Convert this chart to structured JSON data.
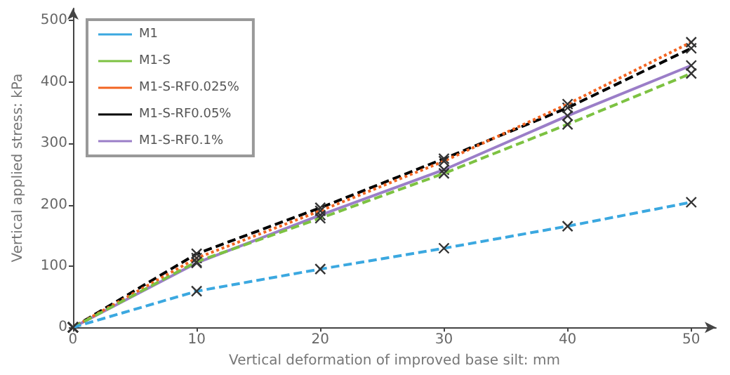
{
  "chart_data": {
    "type": "line",
    "xlabel": "Vertical deformation of improved base silt: mm",
    "ylabel": "Vertical applied stress: kPa",
    "x": [
      0,
      10,
      20,
      30,
      40,
      50
    ],
    "series": [
      {
        "name": "M1",
        "color": "#3ba8e0",
        "line_style": "dashed",
        "values": [
          0,
          59,
          95,
          129,
          165,
          204
        ]
      },
      {
        "name": "M1-S",
        "color": "#7dc242",
        "line_style": "dashed",
        "values": [
          0,
          107,
          178,
          251,
          331,
          414
        ]
      },
      {
        "name": "M1-S-RF0.025%",
        "color": "#f26522",
        "line_style": "dotted",
        "values": [
          0,
          113,
          190,
          271,
          364,
          465
        ]
      },
      {
        "name": "M1-S-RF0.05%",
        "color": "#000000",
        "line_style": "dashed",
        "values": [
          0,
          120,
          195,
          275,
          358,
          455
        ]
      },
      {
        "name": "M1-S-RF0.1%",
        "color": "#9b7ec8",
        "line_style": "solid",
        "values": [
          0,
          105,
          183,
          257,
          345,
          427
        ]
      }
    ],
    "xlim": [
      0,
      52
    ],
    "xticks": [
      0,
      10,
      20,
      30,
      40,
      50
    ],
    "ylim": [
      0,
      520
    ],
    "yticks": [
      0,
      100,
      200,
      300,
      400,
      500
    ],
    "marker": "cross",
    "grid": false,
    "legend": "top left"
  }
}
